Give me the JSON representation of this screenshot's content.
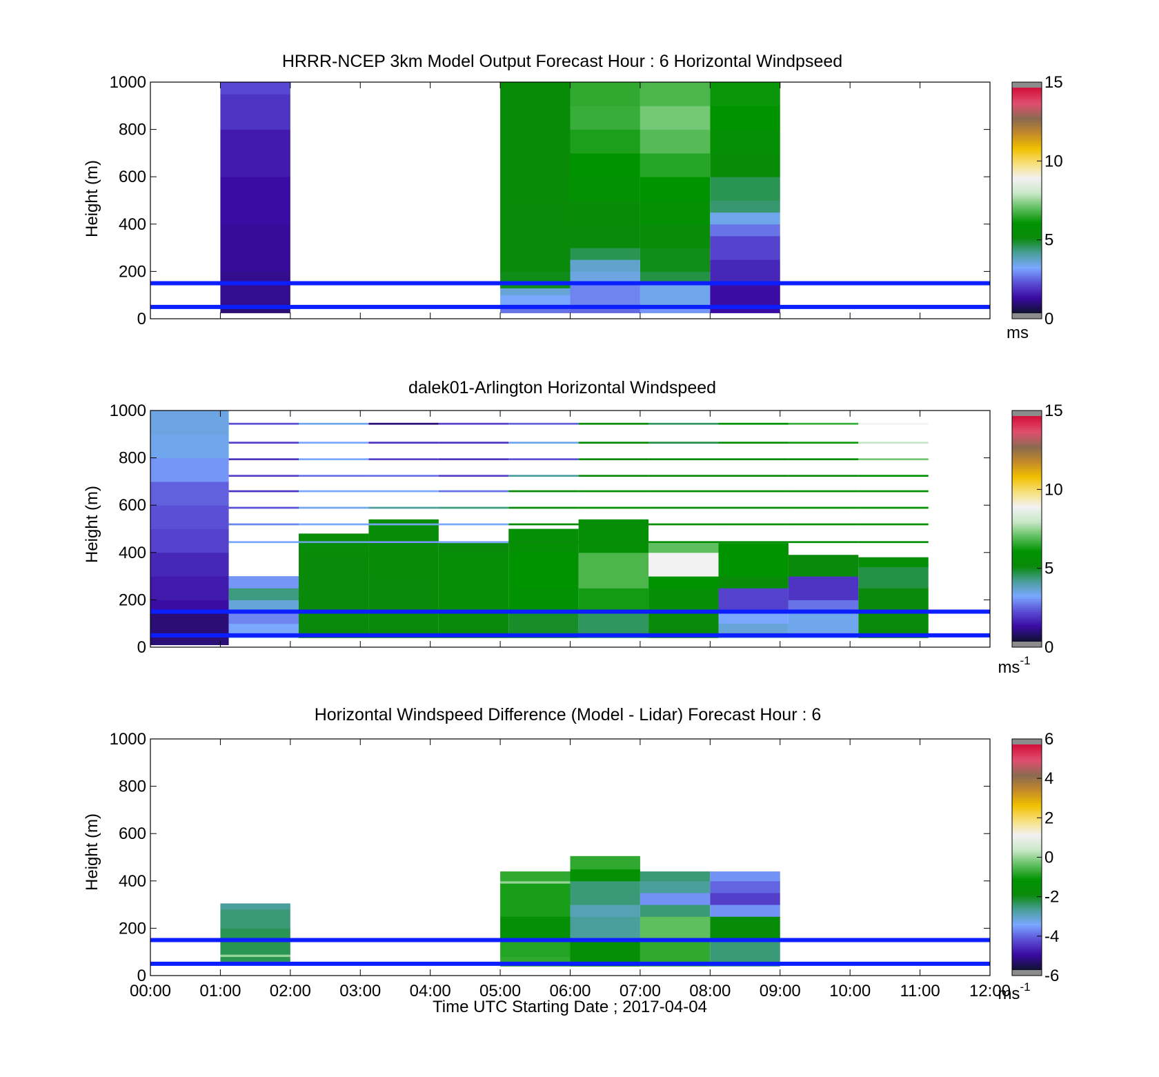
{
  "chart_data": [
    {
      "type": "heatmap",
      "title": "HRRR-NCEP 3km Model Output   Forecast Hour : 6 Horizontal Windpseed",
      "ylabel": "Height (m)",
      "xlabel": "",
      "xlim": [
        0,
        12
      ],
      "ylim": [
        0,
        1000
      ],
      "yticks": [
        "0",
        "200",
        "400",
        "600",
        "800",
        "1000"
      ],
      "colorbar": {
        "range": [
          0,
          15
        ],
        "ticks": [
          "0",
          "5",
          "10",
          "15"
        ],
        "unit": "ms",
        "unit_sup": ""
      },
      "reference_lines_m": [
        50,
        150
      ],
      "columns": [
        {
          "t0": 1,
          "t1": 2,
          "ymin": 25,
          "cells": [
            [
              25,
              50,
              0.6
            ],
            [
              50,
              200,
              0.8
            ],
            [
              200,
              400,
              0.9
            ],
            [
              400,
              600,
              1.0
            ],
            [
              600,
              800,
              1.2
            ],
            [
              800,
              950,
              1.6
            ],
            [
              950,
              1000,
              1.9
            ]
          ]
        },
        {
          "t0": 5,
          "t1": 6,
          "ymin": 25,
          "cells": [
            [
              25,
              60,
              2.4
            ],
            [
              60,
              100,
              3.0
            ],
            [
              100,
              130,
              3.4
            ],
            [
              130,
              200,
              4.9
            ],
            [
              200,
              300,
              5.0
            ],
            [
              300,
              500,
              5.1
            ],
            [
              500,
              1000,
              5.2
            ]
          ]
        },
        {
          "t0": 6,
          "t1": 7,
          "ymin": 25,
          "cells": [
            [
              25,
              60,
              2.3
            ],
            [
              60,
              150,
              2.6
            ],
            [
              150,
              200,
              3.3
            ],
            [
              200,
              250,
              3.5
            ],
            [
              250,
              300,
              4.5
            ],
            [
              300,
              400,
              5.0
            ],
            [
              400,
              500,
              5.2
            ],
            [
              500,
              600,
              5.8
            ],
            [
              600,
              700,
              6.0
            ],
            [
              700,
              800,
              6.3
            ],
            [
              800,
              900,
              6.6
            ],
            [
              900,
              1000,
              6.5
            ]
          ]
        },
        {
          "t0": 7,
          "t1": 8,
          "ymin": 25,
          "cells": [
            [
              25,
              60,
              2.8
            ],
            [
              60,
              150,
              3.2
            ],
            [
              150,
              200,
              4.6
            ],
            [
              200,
              300,
              4.9
            ],
            [
              300,
              400,
              5.3
            ],
            [
              400,
              500,
              5.7
            ],
            [
              500,
              600,
              6.0
            ],
            [
              600,
              700,
              6.4
            ],
            [
              700,
              800,
              6.9
            ],
            [
              800,
              900,
              7.2
            ],
            [
              900,
              1000,
              6.8
            ]
          ]
        },
        {
          "t0": 8,
          "t1": 9,
          "ymin": 25,
          "cells": [
            [
              25,
              150,
              1.0
            ],
            [
              150,
              250,
              1.4
            ],
            [
              250,
              350,
              1.8
            ],
            [
              350,
              400,
              2.4
            ],
            [
              400,
              450,
              3.2
            ],
            [
              450,
              500,
              4.3
            ],
            [
              500,
              600,
              4.5
            ],
            [
              600,
              700,
              5.2
            ],
            [
              700,
              800,
              5.6
            ],
            [
              800,
              900,
              6.0
            ],
            [
              900,
              1000,
              6.1
            ]
          ]
        }
      ]
    },
    {
      "type": "heatmap",
      "title": "dalek01-Arlington  Horizontal Windspeed",
      "ylabel": "Height (m)",
      "xlabel": "",
      "xlim": [
        0,
        12
      ],
      "ylim": [
        0,
        1000
      ],
      "yticks": [
        "0",
        "200",
        "400",
        "600",
        "800",
        "1000"
      ],
      "colorbar": {
        "range": [
          0,
          15
        ],
        "ticks": [
          "0",
          "5",
          "10",
          "15"
        ],
        "unit": "ms",
        "unit_sup": "-1"
      },
      "reference_lines_m": [
        50,
        150
      ],
      "columns": [
        {
          "t0": 0,
          "t1": 1.12,
          "ymin": 10,
          "cells": [
            [
              10,
              150,
              0.6
            ],
            [
              150,
              200,
              1.0
            ],
            [
              200,
              300,
              1.2
            ],
            [
              300,
              400,
              1.4
            ],
            [
              400,
              500,
              1.8
            ],
            [
              500,
              600,
              2.0
            ],
            [
              600,
              700,
              2.2
            ],
            [
              700,
              800,
              2.8
            ],
            [
              800,
              900,
              3.2
            ],
            [
              900,
              1000,
              3.3
            ]
          ]
        },
        {
          "t0": 1.12,
          "t1": 2.12,
          "ymin": 40,
          "cells": [
            [
              40,
              100,
              3.0
            ],
            [
              100,
              150,
              2.6
            ],
            [
              150,
              200,
              3.4
            ],
            [
              200,
              250,
              4.2
            ],
            [
              250,
              300,
              2.8
            ]
          ]
        },
        {
          "t0": 2.12,
          "t1": 3.12,
          "ymin": 40,
          "cells": [
            [
              40,
              150,
              5.0
            ],
            [
              150,
              300,
              5.0
            ],
            [
              300,
              400,
              5.1
            ],
            [
              400,
              480,
              5.3
            ]
          ]
        },
        {
          "t0": 3.12,
          "t1": 4.12,
          "ymin": 40,
          "cells": [
            [
              40,
              150,
              5.0
            ],
            [
              150,
              300,
              5.1
            ],
            [
              300,
              540,
              5.2
            ]
          ]
        },
        {
          "t0": 4.12,
          "t1": 5.12,
          "ymin": 40,
          "cells": [
            [
              40,
              150,
              5.0
            ],
            [
              150,
              400,
              5.4
            ],
            [
              400,
              440,
              5.0
            ]
          ]
        },
        {
          "t0": 5.12,
          "t1": 6.12,
          "ymin": 40,
          "cells": [
            [
              40,
              150,
              4.8
            ],
            [
              150,
              250,
              5.8
            ],
            [
              250,
              400,
              6.0
            ],
            [
              400,
              500,
              5.6
            ]
          ]
        },
        {
          "t0": 6.12,
          "t1": 7.12,
          "ymin": 40,
          "cells": [
            [
              40,
              150,
              4.4
            ],
            [
              150,
              250,
              6.2
            ],
            [
              250,
              400,
              6.8
            ],
            [
              400,
              540,
              5.5
            ]
          ]
        },
        {
          "t0": 7.12,
          "t1": 8.12,
          "ymin": 40,
          "cells": [
            [
              40,
              150,
              5.0
            ],
            [
              150,
              250,
              5.4
            ],
            [
              250,
              300,
              6.0
            ],
            [
              300,
              400,
              9.0
            ],
            [
              400,
              440,
              7.0
            ]
          ]
        },
        {
          "t0": 8.12,
          "t1": 9.12,
          "ymin": 40,
          "cells": [
            [
              40,
              100,
              3.4
            ],
            [
              100,
              150,
              3.0
            ],
            [
              150,
              250,
              1.8
            ],
            [
              250,
              300,
              5.2
            ],
            [
              300,
              440,
              6.0
            ]
          ]
        },
        {
          "t0": 9.12,
          "t1": 10.12,
          "ymin": 40,
          "cells": [
            [
              40,
              150,
              3.2
            ],
            [
              150,
              200,
              2.4
            ],
            [
              200,
              300,
              1.6
            ],
            [
              300,
              390,
              5.0
            ]
          ]
        },
        {
          "t0": 10.12,
          "t1": 11.12,
          "ymin": 40,
          "cells": [
            [
              40,
              150,
              5.0
            ],
            [
              150,
              250,
              5.0
            ],
            [
              250,
              340,
              4.6
            ],
            [
              340,
              380,
              5.4
            ]
          ]
        }
      ],
      "upper_strips": [
        {
          "t0": 1.12,
          "t1": 2.12,
          "values": [
            2.0,
            1.8,
            1.6,
            1.8,
            1.6,
            2.0,
            2.6,
            3.0
          ]
        },
        {
          "t0": 2.12,
          "t1": 3.12,
          "values": [
            3.2,
            3.0,
            3.0,
            2.4,
            3.0,
            3.2,
            3.0,
            3.4
          ]
        },
        {
          "t0": 3.12,
          "t1": 4.12,
          "values": [
            0.6,
            1.6,
            1.8,
            2.4,
            3.0,
            4.0,
            3.2,
            2.8
          ]
        },
        {
          "t0": 4.12,
          "t1": 5.12,
          "values": [
            1.8,
            1.6,
            1.6,
            1.8,
            2.4,
            4.2,
            3.0,
            3.0
          ]
        },
        {
          "t0": 5.12,
          "t1": 6.12,
          "values": [
            2.2,
            3.2,
            2.0,
            4.0,
            5.0,
            5.0,
            5.2,
            5.0
          ]
        },
        {
          "t0": 6.12,
          "t1": 7.12,
          "values": [
            5.0,
            5.2,
            5.0,
            5.0,
            5.4,
            5.4,
            5.2,
            5.4
          ]
        },
        {
          "t0": 7.12,
          "t1": 8.12,
          "values": [
            4.4,
            4.6,
            5.2,
            5.0,
            5.2,
            5.0,
            5.4,
            5.4
          ]
        },
        {
          "t0": 8.12,
          "t1": 9.12,
          "values": [
            5.8,
            5.4,
            5.2,
            5.0,
            5.2,
            5.0,
            5.4,
            5.4
          ]
        },
        {
          "t0": 9.12,
          "t1": 10.12,
          "values": [
            6.6,
            6.2,
            5.4,
            5.0,
            5.4,
            5.4,
            5.4,
            5.4
          ]
        },
        {
          "t0": 10.12,
          "t1": 11.12,
          "values": [
            9.0,
            8.0,
            7.2,
            6.0,
            5.6,
            5.4,
            5.4,
            5.4
          ]
        }
      ],
      "upper_strip_heights_m": [
        940,
        860,
        790,
        720,
        655,
        585,
        515,
        440
      ]
    },
    {
      "type": "heatmap",
      "title": "Horizontal Windspeed Difference (Model - Lidar) Forecast Hour : 6",
      "ylabel": "Height (m)",
      "xlabel": "Time UTC  Starting Date ; 2017-04-04",
      "xlim": [
        0,
        12
      ],
      "ylim": [
        0,
        1000
      ],
      "xticks": [
        "00:00",
        "01:00",
        "02:00",
        "03:00",
        "04:00",
        "05:00",
        "06:00",
        "07:00",
        "08:00",
        "09:00",
        "10:00",
        "11:00",
        "12:00"
      ],
      "yticks": [
        "0",
        "200",
        "400",
        "600",
        "800",
        "1000"
      ],
      "colorbar": {
        "range": [
          -6,
          6
        ],
        "ticks": [
          "-6",
          "-4",
          "-2",
          "0",
          "2",
          "4",
          "6"
        ],
        "unit": "ms",
        "unit_sup": "-1"
      },
      "reference_lines_m": [
        50,
        150
      ],
      "columns": [
        {
          "t0": 1,
          "t1": 2,
          "ymin": 60,
          "cells": [
            [
              60,
              80,
              -2.4
            ],
            [
              80,
              90,
              0.0
            ],
            [
              90,
              200,
              -2.4
            ],
            [
              200,
              280,
              -2.6
            ],
            [
              280,
              305,
              -2.8
            ]
          ]
        },
        {
          "t0": 5,
          "t1": 6,
          "ymin": 40,
          "cells": [
            [
              40,
              80,
              -0.8
            ],
            [
              80,
              150,
              -0.9
            ],
            [
              150,
              250,
              -1.6
            ],
            [
              250,
              390,
              -1.0
            ],
            [
              390,
              400,
              0.0
            ],
            [
              400,
              440,
              -0.8
            ]
          ]
        },
        {
          "t0": 6,
          "t1": 7,
          "ymin": 40,
          "cells": [
            [
              40,
              150,
              -1.6
            ],
            [
              150,
              250,
              -2.8
            ],
            [
              250,
              300,
              -3.0
            ],
            [
              300,
              400,
              -2.6
            ],
            [
              400,
              450,
              -1.4
            ],
            [
              450,
              505,
              -0.8
            ]
          ]
        },
        {
          "t0": 7,
          "t1": 8,
          "ymin": 40,
          "cells": [
            [
              40,
              150,
              -0.8
            ],
            [
              150,
              250,
              -0.4
            ],
            [
              250,
              300,
              -2.6
            ],
            [
              300,
              350,
              -3.8
            ],
            [
              350,
              400,
              -2.8
            ],
            [
              400,
              440,
              -2.6
            ]
          ]
        },
        {
          "t0": 8,
          "t1": 9,
          "ymin": 40,
          "cells": [
            [
              40,
              150,
              -2.6
            ],
            [
              150,
              250,
              -1.8
            ],
            [
              250,
              300,
              -3.8
            ],
            [
              300,
              350,
              -4.6
            ],
            [
              350,
              400,
              -4.2
            ],
            [
              400,
              440,
              -3.8
            ]
          ]
        }
      ]
    }
  ],
  "colors": {
    "reference_line": "#0a1eff",
    "colormap_stops": [
      "#111133",
      "#3a0ca3",
      "#5b4fd6",
      "#7aa8ff",
      "#4a9e9b",
      "#0a8a0a",
      "#009300",
      "#5fbf5f",
      "#c9e8c9",
      "#f2f2f2",
      "#f7e07a",
      "#f0c000",
      "#c48a2a",
      "#8a6a50",
      "#e05070",
      "#d4143c"
    ]
  }
}
